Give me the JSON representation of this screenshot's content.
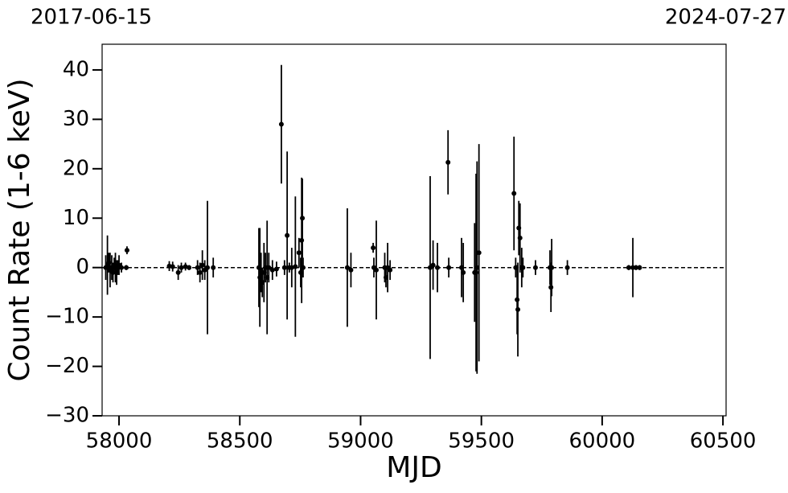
{
  "chart_data": {
    "type": "errorbar",
    "xlabel": "MJD",
    "ylabel": "Count Rate (1-6 keV)",
    "top_labels": [
      "2017-06-15",
      "2024-07-27"
    ],
    "color": "#000000",
    "reference_line": 0,
    "xlim": [
      57930,
      60513
    ],
    "ylim": [
      -30,
      45.2
    ],
    "xticks": [
      58000,
      58500,
      59000,
      59500,
      60000,
      60500
    ],
    "yticks": [
      {
        "value": -30,
        "label": "−30"
      },
      {
        "value": -20,
        "label": "−20"
      },
      {
        "value": -10,
        "label": "−10"
      },
      0,
      10,
      20,
      30,
      40
    ],
    "x": [
      57945,
      57952,
      57958,
      57963,
      57970,
      57975,
      57980,
      57985,
      57990,
      57995,
      58000,
      58010,
      58033,
      58030,
      58208,
      58222,
      58245,
      58258,
      58275,
      58290,
      58325,
      58335,
      58345,
      58355,
      58366,
      58390,
      58579,
      58583,
      58588,
      58593,
      58600,
      58606,
      58613,
      58620,
      58635,
      58652,
      58672,
      58685,
      58696,
      58705,
      58715,
      58730,
      58745,
      58752,
      58759,
      58756,
      58762,
      58945,
      58960,
      59052,
      59055,
      59065,
      59100,
      59105,
      59112,
      59122,
      59288,
      59300,
      59318,
      59362,
      59365,
      59418,
      59425,
      59472,
      59478,
      59482,
      59490,
      59635,
      59642,
      59648,
      59651,
      59655,
      59660,
      59667,
      59672,
      59724,
      59784,
      59788,
      59791,
      59856,
      60110,
      60127,
      60140,
      60155
    ],
    "values": [
      0,
      0.5,
      1,
      -0.5,
      0,
      -1,
      0.5,
      0,
      -1,
      0,
      0.5,
      0,
      3.5,
      0,
      0.3,
      0.2,
      -1,
      0,
      0.2,
      0,
      0,
      -1,
      0.5,
      -0.5,
      0,
      0,
      0,
      -2,
      -1,
      -3,
      -1,
      0,
      -2,
      0,
      -0.5,
      -0.3,
      29,
      0,
      6.5,
      0,
      0,
      0.2,
      3,
      -1,
      10,
      5.5,
      0,
      0,
      -0.5,
      4,
      0,
      -0.5,
      0,
      -2,
      0,
      -0.5,
      0,
      0.5,
      0,
      21.3,
      0,
      0,
      -1,
      -1,
      -1,
      0,
      3,
      15,
      0,
      -6.5,
      -8.5,
      8,
      6,
      0,
      0,
      0,
      0,
      -4,
      0,
      0,
      0,
      0,
      0,
      0
    ],
    "errors": [
      2.5,
      6,
      2,
      3.5,
      2.5,
      2,
      1.5,
      3,
      2.5,
      1.5,
      2,
      1,
      0.8,
      0.5,
      1,
      1,
      1.5,
      1,
      0.8,
      0.5,
      1.5,
      2,
      3,
      2,
      13.5,
      2,
      8,
      10,
      4,
      3,
      6,
      3,
      11.5,
      3,
      2,
      1.5,
      12,
      1.5,
      17,
      1,
      4,
      14.2,
      3,
      3,
      8,
      12.7,
      2,
      12,
      3.5,
      1,
      2,
      10,
      3,
      2,
      5,
      2,
      18.5,
      5,
      5,
      6.5,
      2,
      6,
      6,
      10,
      20,
      21.5,
      22,
      11.5,
      2,
      7,
      9.5,
      5.5,
      7,
      4,
      2,
      1.5,
      3.5,
      5,
      5.8,
      1.5,
      0.5,
      6,
      0.5,
      0.5
    ]
  }
}
